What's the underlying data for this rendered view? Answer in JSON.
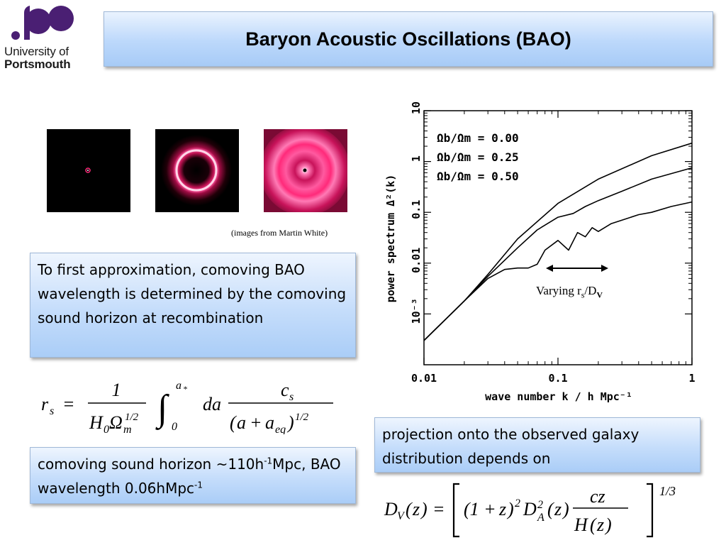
{
  "logo": {
    "line1": "University of",
    "line2": "Portsmouth"
  },
  "title": "Baryon Acoustic Oscillations (BAO)",
  "credit": "(images from Martin White)",
  "box1": {
    "text": "To first approximation, comoving BAO wavelength is determined by the comoving sound horizon at recombination"
  },
  "box2": {
    "pre": "comoving sound horizon ~110h",
    "sup1": "-1",
    "mid": "Mpc, BAO wavelength 0.06hMpc",
    "sup2": "-1"
  },
  "box3": {
    "text": "projection onto the observed galaxy distribution depends on"
  },
  "formula1": "r_s = 1/(H_0 Ω_m^{1/2}) ∫_0^{a_*} da c_s/(a + a_eq)^{1/2}",
  "formula2": "D_V(z) = [ (1+z)^2 D_A^2(z) cz/H(z) ]^{1/3}",
  "annotation": {
    "text": "Varying r",
    "sub1": "s",
    "slash": "/D",
    "sub2": "V"
  },
  "chart_data": {
    "type": "line",
    "xlabel": "wave number k / h Mpc⁻¹",
    "ylabel": "power spectrum Δ²(k)",
    "xscale": "log",
    "yscale": "log",
    "xlim": [
      0.01,
      1
    ],
    "ylim": [
      0.0001,
      10
    ],
    "xticks": [
      "0.01",
      "0.1",
      "1"
    ],
    "yticks": [
      "10⁻³",
      "0.01",
      "0.1",
      "1",
      "10"
    ],
    "series": [
      {
        "name": "Ωb/Ωm = 0.00",
        "x": [
          0.01,
          0.02,
          0.03,
          0.05,
          0.1,
          0.2,
          0.5,
          1.0
        ],
        "y": [
          0.0003,
          0.0018,
          0.006,
          0.03,
          0.15,
          0.45,
          1.3,
          2.3
        ]
      },
      {
        "name": "Ωb/Ωm = 0.25",
        "x": [
          0.01,
          0.02,
          0.03,
          0.05,
          0.07,
          0.1,
          0.13,
          0.16,
          0.2,
          0.3,
          0.5,
          1.0
        ],
        "y": [
          0.0003,
          0.0018,
          0.0055,
          0.02,
          0.045,
          0.08,
          0.095,
          0.13,
          0.17,
          0.26,
          0.45,
          0.75
        ]
      },
      {
        "name": "Ωb/Ωm = 0.50",
        "x": [
          0.01,
          0.02,
          0.03,
          0.04,
          0.05,
          0.06,
          0.07,
          0.08,
          0.1,
          0.12,
          0.14,
          0.16,
          0.18,
          0.2,
          0.25,
          0.3,
          0.4,
          0.5,
          0.7,
          1.0
        ],
        "y": [
          0.0003,
          0.0018,
          0.005,
          0.0075,
          0.008,
          0.008,
          0.0095,
          0.018,
          0.028,
          0.018,
          0.04,
          0.033,
          0.05,
          0.042,
          0.06,
          0.07,
          0.09,
          0.1,
          0.13,
          0.16
        ]
      }
    ],
    "legend": [
      "Ωb/Ωm = 0.00",
      "Ωb/Ωm = 0.25",
      "Ωb/Ωm = 0.50"
    ]
  },
  "colors": {
    "logo": "#4a1f73",
    "box_blue": "#bcd8fb",
    "ring": "#ff2a7a"
  }
}
